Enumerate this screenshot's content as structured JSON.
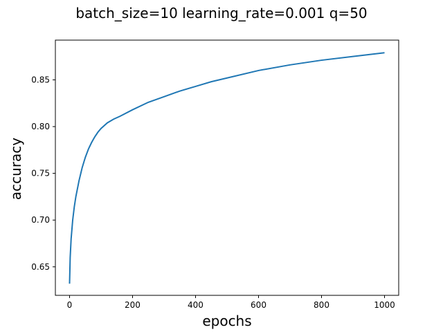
{
  "chart_data": {
    "type": "line",
    "title": "batch_size=10 learning_rate=0.001 q=50",
    "xlabel": "epochs",
    "ylabel": "accuracy",
    "xlim": [
      -45,
      1045
    ],
    "ylim": [
      0.6195,
      0.8925
    ],
    "x_ticks": [
      0,
      200,
      400,
      600,
      800,
      1000
    ],
    "x_tick_labels": [
      "0",
      "200",
      "400",
      "600",
      "800",
      "1000"
    ],
    "y_ticks": [
      0.65,
      0.7,
      0.75,
      0.8,
      0.85
    ],
    "y_tick_labels": [
      "0.65",
      "0.70",
      "0.75",
      "0.80",
      "0.85"
    ],
    "grid": false,
    "series": [
      {
        "name": "accuracy",
        "color": "#1f77b4",
        "x": [
          0,
          2,
          5,
          10,
          15,
          20,
          30,
          40,
          50,
          60,
          70,
          80,
          90,
          100,
          120,
          140,
          160,
          200,
          250,
          300,
          350,
          400,
          450,
          500,
          600,
          700,
          800,
          900,
          1000
        ],
        "values": [
          0.632,
          0.66,
          0.68,
          0.7,
          0.714,
          0.725,
          0.742,
          0.756,
          0.767,
          0.776,
          0.783,
          0.789,
          0.794,
          0.798,
          0.804,
          0.808,
          0.811,
          0.818,
          0.826,
          0.832,
          0.838,
          0.843,
          0.848,
          0.852,
          0.86,
          0.866,
          0.871,
          0.875,
          0.879
        ]
      }
    ]
  }
}
